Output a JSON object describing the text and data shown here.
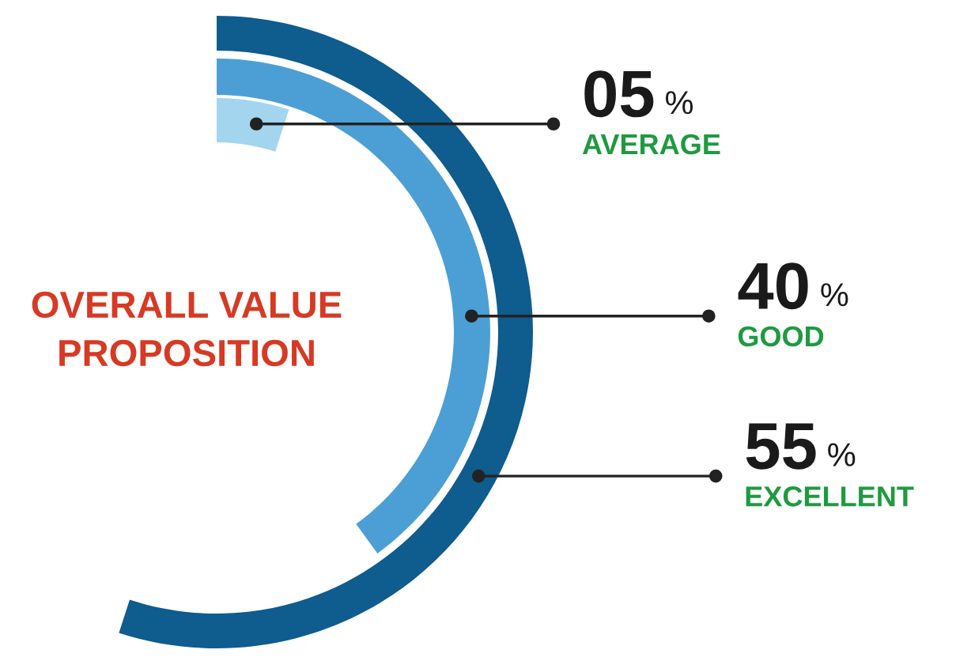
{
  "chart_data": {
    "type": "other",
    "title": "OVERALL VALUE\nPROPOSITION",
    "categories": [
      "AVERAGE",
      "GOOD",
      "EXCELLENT"
    ],
    "values": [
      5,
      40,
      55
    ],
    "value_labels": [
      "05 %",
      "40 %",
      "55 %"
    ],
    "colors": [
      "#a3d5ef",
      "#4c9fd5",
      "#0f5c8e"
    ]
  }
}
